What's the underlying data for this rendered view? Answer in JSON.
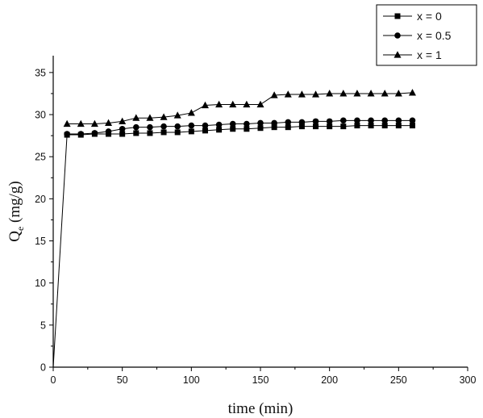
{
  "chart_data": {
    "type": "line",
    "xlabel": "time (min)",
    "ylabel_main": "Q",
    "ylabel_sub": "e",
    "ylabel_rest": " (mg/g)",
    "xlim": [
      0,
      300
    ],
    "ylim": [
      0,
      37
    ],
    "xticks": [
      0,
      50,
      100,
      150,
      200,
      250,
      300
    ],
    "yticks": [
      0,
      5,
      10,
      15,
      20,
      25,
      30,
      35
    ],
    "grid": false,
    "legend_position": "top-right",
    "series": [
      {
        "name": "x = 0",
        "marker": "square",
        "x": [
          0,
          10,
          20,
          30,
          40,
          50,
          60,
          70,
          80,
          90,
          100,
          110,
          120,
          130,
          140,
          150,
          160,
          170,
          180,
          190,
          200,
          210,
          220,
          230,
          240,
          250,
          260
        ],
        "y": [
          0,
          27.6,
          27.6,
          27.7,
          27.7,
          27.7,
          27.8,
          27.8,
          27.9,
          27.9,
          28.0,
          28.1,
          28.2,
          28.3,
          28.3,
          28.4,
          28.5,
          28.5,
          28.6,
          28.6,
          28.6,
          28.6,
          28.7,
          28.7,
          28.7,
          28.7,
          28.7
        ]
      },
      {
        "name": "x = 0.5",
        "marker": "circle",
        "x": [
          10,
          20,
          30,
          40,
          50,
          60,
          70,
          80,
          90,
          100,
          110,
          120,
          130,
          140,
          150,
          160,
          170,
          180,
          190,
          200,
          210,
          220,
          230,
          240,
          250,
          260
        ],
        "y": [
          27.7,
          27.7,
          27.8,
          28.0,
          28.3,
          28.5,
          28.5,
          28.6,
          28.6,
          28.7,
          28.7,
          28.8,
          28.9,
          28.9,
          29.0,
          29.0,
          29.1,
          29.1,
          29.2,
          29.2,
          29.3,
          29.3,
          29.3,
          29.3,
          29.3,
          29.3
        ]
      },
      {
        "name": "x = 1",
        "marker": "triangle",
        "x": [
          10,
          20,
          30,
          40,
          50,
          60,
          70,
          80,
          90,
          100,
          110,
          120,
          130,
          140,
          150,
          160,
          170,
          180,
          190,
          200,
          210,
          220,
          230,
          240,
          250,
          260
        ],
        "y": [
          28.9,
          28.9,
          28.9,
          29.0,
          29.2,
          29.6,
          29.6,
          29.7,
          29.9,
          30.2,
          31.1,
          31.2,
          31.2,
          31.2,
          31.2,
          32.3,
          32.4,
          32.4,
          32.4,
          32.5,
          32.5,
          32.5,
          32.5,
          32.5,
          32.5,
          32.6
        ]
      }
    ]
  }
}
